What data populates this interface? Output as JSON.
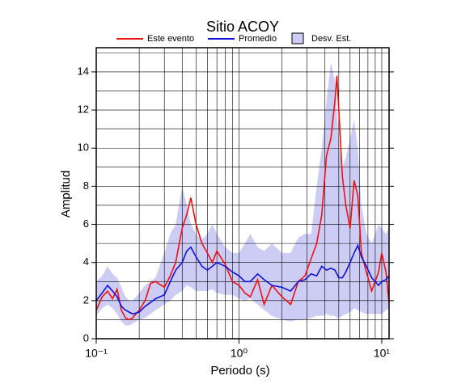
{
  "chart_data": {
    "type": "line",
    "title": "Sitio ACOY",
    "x_label": "Periodo (s)",
    "y_label": "Amplitud",
    "log_x": true,
    "xlim": [
      0.1,
      11.25
    ],
    "ylim": [
      0,
      15.27
    ],
    "xticks": [
      {
        "value": 0.1,
        "label": "10⁻¹"
      },
      {
        "value": 1,
        "label": "10⁰"
      },
      {
        "value": 10,
        "label": "10¹"
      }
    ],
    "yticks": [
      0,
      2,
      4,
      6,
      8,
      10,
      12,
      14
    ],
    "xgrid": [
      0.2,
      0.3,
      0.4,
      0.5,
      0.6,
      0.7,
      0.8,
      0.9,
      1,
      2,
      3,
      4,
      5,
      6,
      7,
      8,
      9,
      10
    ],
    "ygrid": [
      1,
      2,
      3,
      4,
      5,
      6,
      7,
      8,
      9,
      10,
      11,
      12,
      13,
      14,
      15
    ],
    "x": [
      0.1,
      0.11,
      0.12,
      0.13,
      0.14,
      0.15,
      0.16,
      0.17,
      0.18,
      0.2,
      0.22,
      0.24,
      0.26,
      0.3,
      0.33,
      0.36,
      0.4,
      0.43,
      0.46,
      0.5,
      0.55,
      0.6,
      0.65,
      0.7,
      0.8,
      0.9,
      1.0,
      1.1,
      1.2,
      1.35,
      1.5,
      1.7,
      2.0,
      2.3,
      2.6,
      2.9,
      3.2,
      3.5,
      3.8,
      4.1,
      4.4,
      4.7,
      4.85,
      5.0,
      5.3,
      5.6,
      6.0,
      6.4,
      6.8,
      7.2,
      7.8,
      8.5,
      9.5,
      10,
      10.7,
      11.25
    ],
    "band": {
      "name": "Desv. Est.",
      "color": "#ccccf5",
      "upper": [
        3.0,
        3.3,
        3.8,
        3.4,
        3.2,
        2.7,
        2.2,
        2.0,
        2.0,
        2.4,
        2.8,
        3.0,
        3.2,
        4.5,
        5.5,
        6.0,
        8.0,
        7.0,
        6.0,
        5.5,
        5.2,
        5.5,
        6.0,
        5.5,
        4.8,
        4.5,
        4.5,
        5.0,
        5.5,
        4.8,
        4.6,
        5.0,
        4.5,
        4.5,
        5.3,
        5.5,
        5.5,
        8,
        10,
        12.5,
        14.5,
        13.5,
        12,
        10,
        9,
        9.5,
        10.5,
        11.5,
        10,
        7,
        5.5,
        5.0,
        6.0,
        5.8,
        5.5,
        5.8
      ],
      "lower": [
        1.2,
        1.6,
        1.8,
        1.6,
        1.3,
        0.9,
        0.7,
        0.7,
        0.8,
        1.0,
        1.1,
        1.3,
        1.5,
        1.8,
        2.0,
        2.3,
        2.5,
        2.8,
        2.7,
        2.5,
        2.5,
        2.5,
        2.6,
        2.4,
        2.3,
        2.3,
        2.1,
        2.0,
        2.1,
        1.8,
        1.5,
        1.2,
        1.0,
        0.9,
        1.0,
        1.0,
        1.1,
        1.2,
        1.2,
        1.3,
        1.2,
        1.2,
        1.1,
        1.1,
        1.2,
        1.3,
        1.4,
        1.6,
        1.5,
        1.4,
        1.3,
        1.3,
        1.3,
        1.3,
        1.5,
        1.6
      ]
    },
    "series": [
      {
        "name": "Este evento",
        "color": "#ee1111",
        "values": [
          1.5,
          2.2,
          2.5,
          2.1,
          2.6,
          1.5,
          1.1,
          1.0,
          1.1,
          1.5,
          2.0,
          2.9,
          3.0,
          2.7,
          3.3,
          4.0,
          5.8,
          6.5,
          7.4,
          6.0,
          5.0,
          4.5,
          4.0,
          4.6,
          3.9,
          3.0,
          2.8,
          2.4,
          2.2,
          3.1,
          1.8,
          2.8,
          2.2,
          1.8,
          3.0,
          3.3,
          4.2,
          5.0,
          6.5,
          9.6,
          10.5,
          12.5,
          13.8,
          12.0,
          8.5,
          7.0,
          5.8,
          8.3,
          7.5,
          4.5,
          3.5,
          2.5,
          3.5,
          4.5,
          3.5,
          1.9
        ]
      },
      {
        "name": "Promedio",
        "color": "#1111dd",
        "values": [
          2.0,
          2.4,
          2.8,
          2.5,
          2.2,
          1.7,
          1.5,
          1.4,
          1.3,
          1.4,
          1.7,
          1.9,
          2.1,
          2.3,
          3.0,
          3.6,
          4.0,
          4.6,
          4.8,
          4.3,
          3.8,
          3.6,
          3.8,
          4.0,
          3.8,
          3.5,
          3.3,
          3.0,
          3.0,
          3.4,
          3.1,
          2.8,
          2.7,
          2.5,
          3.0,
          3.1,
          3.4,
          3.3,
          3.8,
          3.6,
          3.7,
          3.6,
          3.4,
          3.2,
          3.2,
          3.5,
          4.0,
          4.5,
          4.9,
          4.3,
          3.8,
          3.2,
          2.8,
          3.0,
          3.1,
          3.3
        ]
      }
    ]
  }
}
